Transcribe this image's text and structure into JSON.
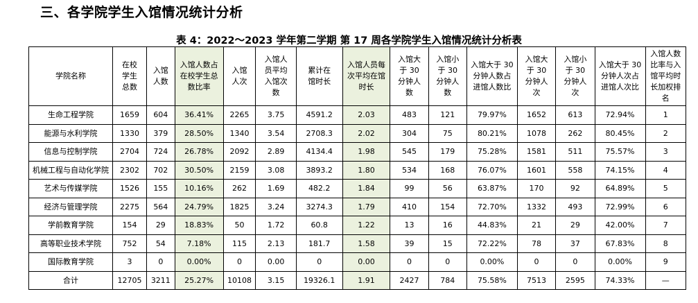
{
  "page": {
    "heading": "三、各学院学生入馆情况统计分析",
    "table_caption": "表 4：2022～2023 学年第二学期 第 17 周各学院学生入馆情况统计分析表"
  },
  "table": {
    "headers": [
      "学院名称",
      "在校学生总数",
      "入馆人数",
      "入馆人数占在校学生总数比率",
      "入馆人次",
      "入馆人员平均入馆次数",
      "累计在馆时长",
      "入馆人员每次平均在馆时长",
      "入馆大于 30 分钟人数",
      "入馆小于 30 分钟人数",
      "入馆大于 30 分钟人数占进馆人数比",
      "入馆大于 30 分钟人次",
      "入馆小于 30 分钟人次",
      "入馆大于 30 分钟人次占进馆人次比",
      "入馆人数比率与入馆平均时长加权排名"
    ],
    "rows": [
      [
        "生命工程学院",
        "1659",
        "604",
        "36.41%",
        "2265",
        "3.75",
        "4591.2",
        "2.03",
        "483",
        "121",
        "79.97%",
        "1652",
        "613",
        "72.94%",
        "1"
      ],
      [
        "能源与水利学院",
        "1330",
        "379",
        "28.50%",
        "1340",
        "3.54",
        "2708.3",
        "2.02",
        "304",
        "75",
        "80.21%",
        "1078",
        "262",
        "80.45%",
        "2"
      ],
      [
        "信息与控制学院",
        "2704",
        "724",
        "26.78%",
        "2092",
        "2.89",
        "4134.4",
        "1.98",
        "545",
        "179",
        "75.28%",
        "1581",
        "511",
        "75.57%",
        "3"
      ],
      [
        "机械工程与自动化学院",
        "2302",
        "702",
        "30.50%",
        "2159",
        "3.08",
        "3893.2",
        "1.80",
        "534",
        "168",
        "76.07%",
        "1601",
        "558",
        "74.15%",
        "4"
      ],
      [
        "艺术与传媒学院",
        "1526",
        "155",
        "10.16%",
        "262",
        "1.69",
        "482.2",
        "1.84",
        "99",
        "56",
        "63.87%",
        "170",
        "92",
        "64.89%",
        "5"
      ],
      [
        "经济与管理学院",
        "2275",
        "564",
        "24.79%",
        "1825",
        "3.24",
        "3274.3",
        "1.79",
        "410",
        "154",
        "72.70%",
        "1332",
        "493",
        "72.99%",
        "6"
      ],
      [
        "学前教育学院",
        "154",
        "29",
        "18.83%",
        "50",
        "1.72",
        "60.8",
        "1.22",
        "13",
        "16",
        "44.83%",
        "21",
        "29",
        "42.00%",
        "7"
      ],
      [
        "高等职业技术学院",
        "752",
        "54",
        "7.18%",
        "115",
        "2.13",
        "181.7",
        "1.58",
        "39",
        "15",
        "72.22%",
        "78",
        "37",
        "67.83%",
        "8"
      ],
      [
        "国际教育学院",
        "3",
        "0",
        "0.00%",
        "0",
        "0.00",
        "0",
        "0.00",
        "0",
        "0",
        "0.00%",
        "0",
        "0",
        "0.00%",
        "9"
      ],
      [
        "合计",
        "12705",
        "3211",
        "25.27%",
        "10108",
        "3.15",
        "19326.1",
        "1.91",
        "2427",
        "784",
        "75.58%",
        "7513",
        "2595",
        "74.33%",
        "—"
      ]
    ],
    "highlight_color": "#ebf1de"
  }
}
